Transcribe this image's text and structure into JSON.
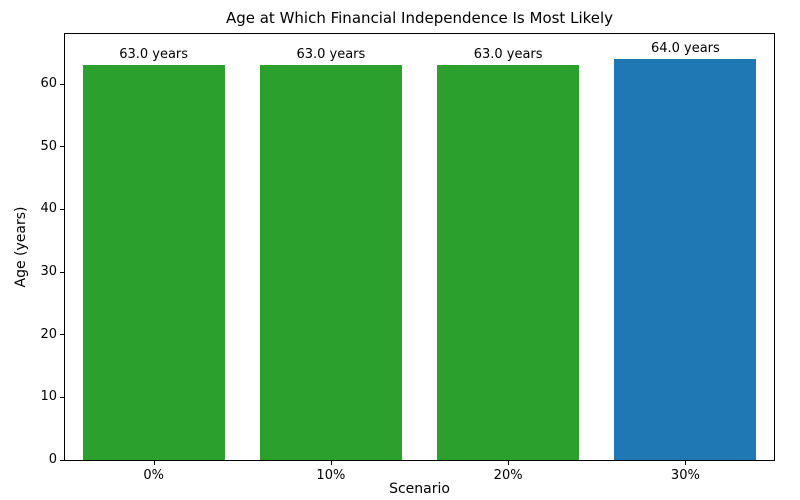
{
  "chart_data": {
    "type": "bar",
    "title": "Age at Which Financial Independence Is Most Likely",
    "xlabel": "Scenario",
    "ylabel": "Age (years)",
    "categories": [
      "0%",
      "10%",
      "20%",
      "30%"
    ],
    "values": [
      63.0,
      63.0,
      63.0,
      64.0
    ],
    "bar_labels": [
      "63.0 years",
      "63.0 years",
      "63.0 years",
      "64.0 years"
    ],
    "bar_colors": [
      "#2ca02c",
      "#2ca02c",
      "#2ca02c",
      "#1f77b4"
    ],
    "ylim": [
      0,
      68
    ],
    "yticks": [
      0,
      10,
      20,
      30,
      40,
      50,
      60
    ],
    "grid": false,
    "legend": "none"
  }
}
